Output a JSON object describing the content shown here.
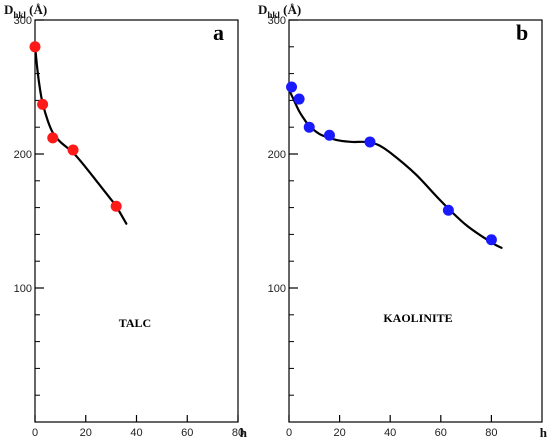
{
  "chart_data": [
    {
      "type": "scatter",
      "panel": "a",
      "annotation": "TALC",
      "ylabel_main": "D",
      "ylabel_sub": "hkl",
      "ylabel_unit": " (Å)",
      "xlabel": "h",
      "xlim": [
        0,
        80
      ],
      "ylim": [
        0,
        300
      ],
      "yticks": [
        100,
        200,
        300
      ],
      "xticks": [
        0,
        20,
        40,
        60,
        80
      ],
      "marker_color": "#ff1a1a",
      "series": [
        {
          "x": [
            0,
            3,
            7,
            15,
            32
          ],
          "y": [
            280,
            237,
            212,
            203,
            161
          ]
        }
      ],
      "fit_curve": {
        "x": [
          0,
          1,
          2,
          3,
          5,
          7,
          10,
          15,
          20,
          25,
          30,
          32,
          36
        ],
        "y": [
          281,
          262,
          248,
          238,
          225,
          216,
          209,
          201,
          190,
          178,
          166,
          161,
          148
        ]
      }
    },
    {
      "type": "scatter",
      "panel": "b",
      "annotation": "KAOLINITE",
      "ylabel_main": "D",
      "ylabel_sub": "hkl",
      "ylabel_unit": " (Å)",
      "xlabel": "h",
      "xlim": [
        0,
        100
      ],
      "ylim": [
        0,
        300
      ],
      "yticks": [
        100,
        200,
        300
      ],
      "xticks": [
        0,
        20,
        40,
        60,
        80
      ],
      "marker_color": "#1a1aff",
      "series": [
        {
          "x": [
            1,
            4,
            8,
            16,
            32,
            63,
            80
          ],
          "y": [
            250,
            241,
            220,
            214,
            209,
            158,
            136
          ]
        }
      ],
      "fit_curve": {
        "x": [
          0,
          2,
          4,
          6,
          8,
          12,
          16,
          20,
          25,
          30,
          35,
          40,
          50,
          60,
          70,
          80,
          84
        ],
        "y": [
          248,
          240,
          232,
          226,
          221,
          215,
          212,
          210,
          209,
          209,
          207,
          201,
          185,
          165,
          147,
          134,
          130
        ]
      }
    }
  ]
}
